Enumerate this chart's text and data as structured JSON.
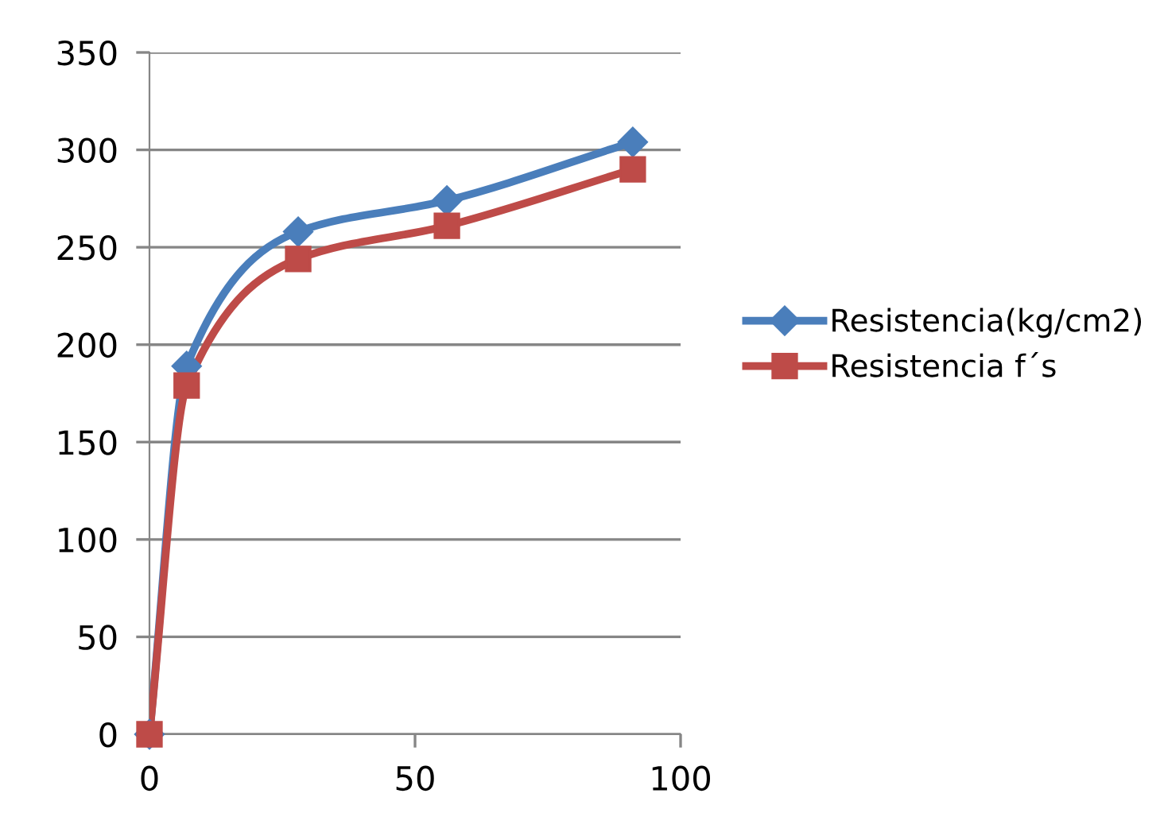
{
  "chart_data": {
    "type": "line",
    "x": [
      0,
      7,
      28,
      56,
      91
    ],
    "series": [
      {
        "name": "Resistencia(kg/cm2)",
        "color": "#4a7ebb",
        "marker": "diamond",
        "values": [
          0,
          189,
          258,
          274,
          304
        ]
      },
      {
        "name": "Resistencia f´s",
        "color": "#be4b48",
        "marker": "square",
        "values": [
          0,
          179,
          244,
          261,
          290
        ]
      }
    ],
    "xlim": [
      0,
      100
    ],
    "xticks": [
      0,
      50,
      100
    ],
    "ylim": [
      0,
      350
    ],
    "yticks": [
      0,
      50,
      100,
      150,
      200,
      250,
      300,
      350
    ],
    "grid": "y",
    "legend": "right",
    "line_style": "solid"
  }
}
